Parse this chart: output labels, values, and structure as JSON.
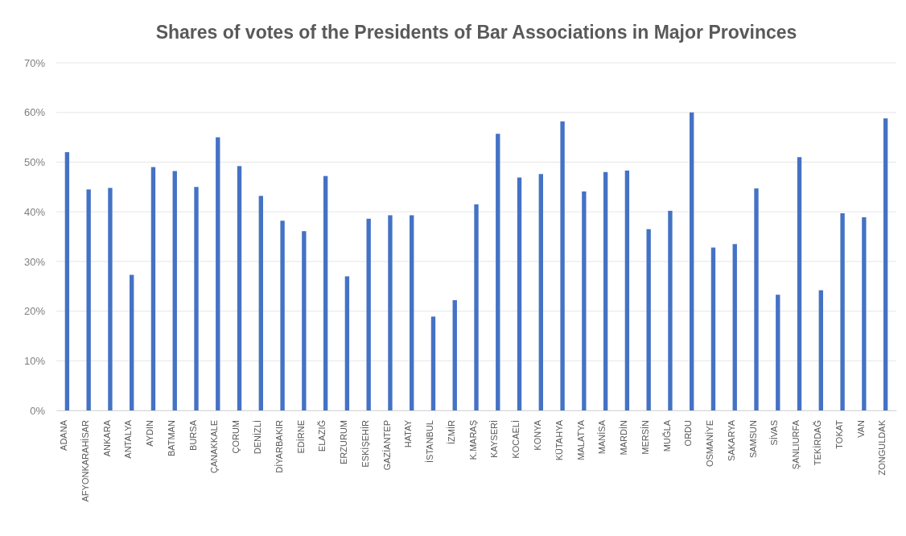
{
  "chart_data": {
    "type": "bar",
    "title": "Shares of votes of the Presidents of Bar Associations in Major Provinces",
    "categories": [
      "ADANA",
      "AFYONKARAHİSAR",
      "ANKARA",
      "ANTALYA",
      "AYDIN",
      "BATMAN",
      "BURSA",
      "ÇANAKKALE",
      "ÇORUM",
      "DENİZLİ",
      "DİYARBAKIR",
      "EDİRNE",
      "ELAZIĞ",
      "ERZURUM",
      "ESKİŞEHİR",
      "GAZİANTEP",
      "HATAY",
      "İSTANBUL",
      "İZMİR",
      "K.MARAŞ",
      "KAYSERİ",
      "KOCAELİ",
      "KONYA",
      "KÜTAHYA",
      "MALATYA",
      "MANİSA",
      "MARDİN",
      "MERSİN",
      "MUĞLA",
      "ORDU",
      "OSMANİYE",
      "SAKARYA",
      "SAMSUN",
      "SİVAS",
      "ŞANLIURFA",
      "TEKİRDAĞ",
      "TOKAT",
      "VAN",
      "ZONGULDAK"
    ],
    "values": [
      52,
      44.5,
      44.8,
      27.3,
      49,
      48.2,
      45,
      55,
      49.2,
      43.2,
      38.2,
      36.1,
      47.2,
      27,
      38.6,
      39.3,
      39.3,
      18.9,
      22.2,
      41.5,
      55.7,
      46.9,
      47.6,
      58.2,
      44.1,
      48,
      48.3,
      36.5,
      40.2,
      60,
      32.8,
      33.5,
      44.7,
      23.3,
      51,
      24.2,
      39.7,
      38.9,
      58.8
    ],
    "color": "#4472c4",
    "ylim": [
      0,
      70
    ],
    "yticks": [
      {
        "value": 0,
        "label": "0%"
      },
      {
        "value": 10,
        "label": "10%"
      },
      {
        "value": 20,
        "label": "20%"
      },
      {
        "value": 30,
        "label": "30%"
      },
      {
        "value": 40,
        "label": "40%"
      },
      {
        "value": 50,
        "label": "50%"
      },
      {
        "value": 60,
        "label": "60%"
      },
      {
        "value": 70,
        "label": "70%"
      }
    ],
    "grid": "y"
  }
}
